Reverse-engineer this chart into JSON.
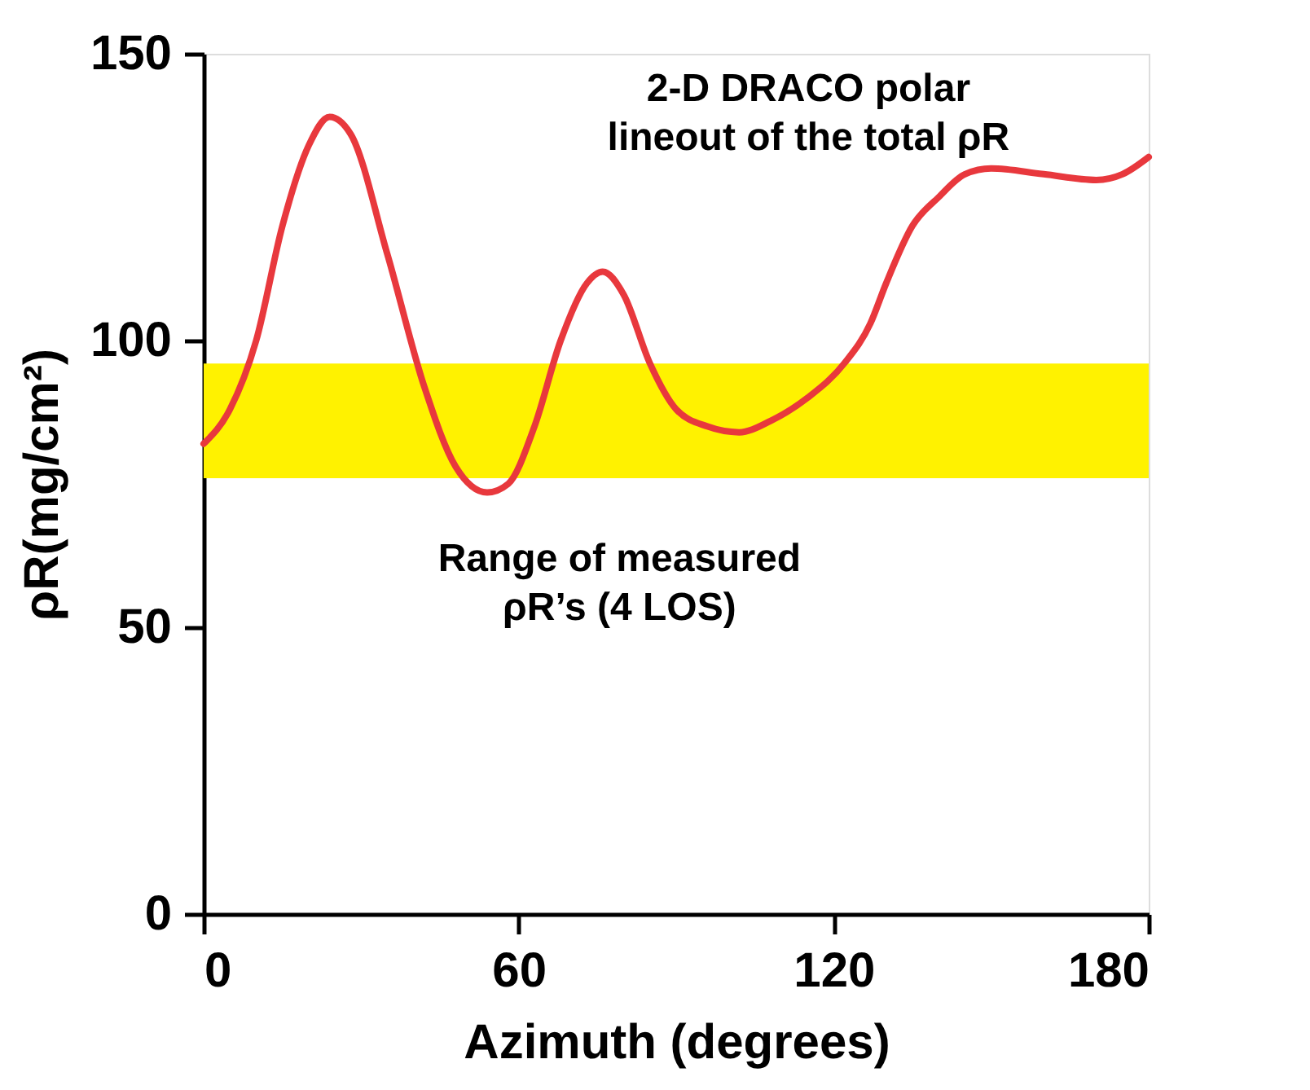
{
  "chart_data": {
    "type": "line",
    "xlabel": "Azimuth (degrees)",
    "ylabel": "ρR(mg/cm²)",
    "x": [
      0,
      5,
      10,
      15,
      20,
      24,
      28,
      35,
      42,
      48,
      54,
      58,
      63,
      68,
      73,
      76,
      80,
      85,
      90,
      96,
      102,
      108,
      115,
      122,
      127,
      130,
      135,
      140,
      145,
      150,
      160,
      170,
      175,
      180
    ],
    "series": [
      {
        "color": "#e8383d",
        "values": [
          82,
          88,
          100,
          120,
          134,
          139,
          136,
          115,
          92,
          78,
          73.5,
          75,
          85,
          100,
          110,
          112,
          108,
          96,
          88,
          85,
          84,
          86,
          90,
          96,
          103,
          110,
          120,
          125,
          129,
          130,
          129,
          128,
          129,
          132
        ]
      }
    ],
    "bands": [
      {
        "axis": "y",
        "from": 76,
        "to": 96,
        "label": "Range of measured\nρR’s (4 LOS)",
        "color": "#fff200"
      }
    ],
    "annotations": [
      "2-D DRACO polar\nlineout of the total ρR"
    ],
    "xlim": [
      0,
      180
    ],
    "ylim": [
      0,
      150
    ],
    "xticks": [
      0,
      60,
      120,
      180
    ],
    "yticks": [
      0,
      50,
      100,
      150
    ],
    "grid": false,
    "line_style": "solid",
    "marker": "none"
  }
}
